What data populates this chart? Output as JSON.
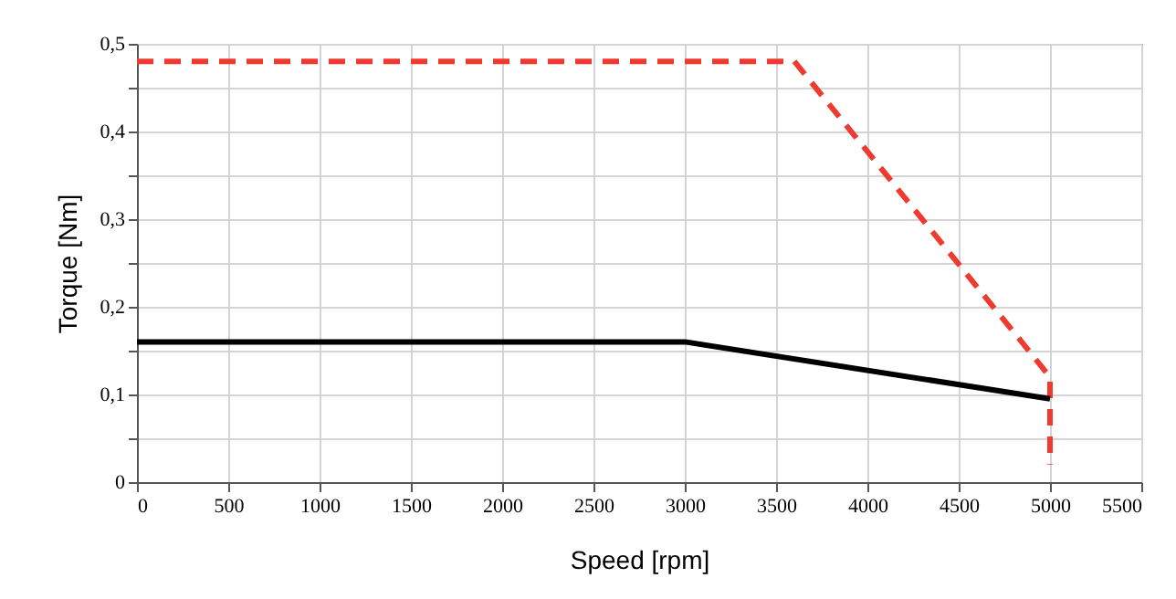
{
  "chart_data": {
    "type": "line",
    "xlabel": "Speed [rpm]",
    "ylabel": "Torque [Nm]",
    "series": [
      {
        "color": "#ee3a2f",
        "line_style": "dashed",
        "x": [
          0,
          3600,
          5000,
          5000
        ],
        "values": [
          0.48,
          0.48,
          0.12,
          0.02
        ]
      },
      {
        "color": "#000000",
        "line_style": "solid",
        "x": [
          0,
          3000,
          5000
        ],
        "values": [
          0.16,
          0.16,
          0.095
        ]
      }
    ],
    "xlim": [
      0,
      5500
    ],
    "xticks": [
      0,
      500,
      1000,
      1500,
      2000,
      2500,
      3000,
      3500,
      4000,
      4500,
      5000,
      5500
    ],
    "ylim": [
      0,
      0.5
    ],
    "yticks": [
      {
        "value": 0,
        "label": "0"
      },
      {
        "value": 0.05,
        "label": null
      },
      {
        "value": 0.1,
        "label": "0,1"
      },
      {
        "value": 0.15,
        "label": null
      },
      {
        "value": 0.2,
        "label": "0,2"
      },
      {
        "value": 0.25,
        "label": null
      },
      {
        "value": 0.3,
        "label": "0,3"
      },
      {
        "value": 0.35,
        "label": null
      },
      {
        "value": 0.4,
        "label": "0,4"
      },
      {
        "value": 0.45,
        "label": null
      },
      {
        "value": 0.5,
        "label": "0,5"
      }
    ],
    "grid": true,
    "marker": "none"
  }
}
